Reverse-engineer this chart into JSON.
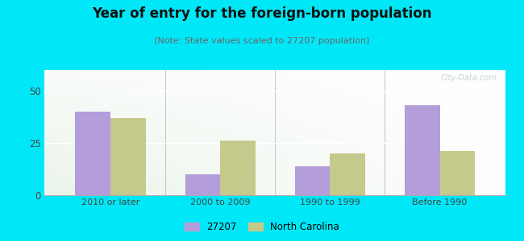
{
  "title": "Year of entry for the foreign-born population",
  "subtitle": "(Note: State values scaled to 27207 population)",
  "categories": [
    "2010 or later",
    "2000 to 2009",
    "1990 to 1999",
    "Before 1990"
  ],
  "series_27207": [
    40,
    10,
    14,
    43
  ],
  "series_nc": [
    37,
    26,
    20,
    21
  ],
  "color_27207": "#b39ddb",
  "color_nc": "#c5c98a",
  "ylim": [
    0,
    60
  ],
  "yticks": [
    0,
    25,
    50
  ],
  "background_outer": "#00e8f8",
  "background_plot_tl": "#d4edda",
  "background_plot_tr": "#f0f8f5",
  "background_plot_br": "#ffffff",
  "background_plot_bl": "#c8e6c9",
  "title_fontsize": 12,
  "subtitle_fontsize": 8,
  "legend_label_27207": "27207",
  "legend_label_nc": "North Carolina",
  "bar_width": 0.32,
  "watermark": "City-Data.com"
}
